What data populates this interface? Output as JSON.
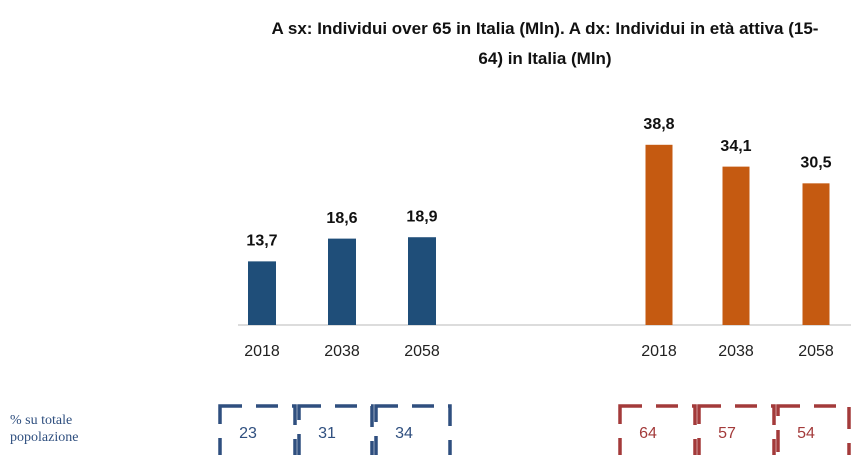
{
  "chart_data": {
    "type": "bar",
    "title": "A sx: Individui over 65 in Italia (Mln). A dx: Individui in età attiva (15-64) in Italia (Mln)",
    "ylim": [
      0,
      45
    ],
    "share_label": "% su totale popolazione",
    "groups": [
      {
        "color": "#1f4e79",
        "share_color": "#2f4f7f",
        "categories": [
          "2018",
          "2038",
          "2058"
        ],
        "values": [
          13.7,
          18.6,
          18.9
        ],
        "value_labels": [
          "13,7",
          "18,6",
          "18,9"
        ],
        "shares": [
          23,
          31,
          34
        ]
      },
      {
        "color": "#c55a11",
        "share_color": "#a33a3a",
        "categories": [
          "2018",
          "2038",
          "2058"
        ],
        "values": [
          38.8,
          34.1,
          30.5
        ],
        "value_labels": [
          "38,8",
          "34,1",
          "30,5"
        ],
        "shares": [
          64,
          57,
          54
        ]
      }
    ]
  }
}
